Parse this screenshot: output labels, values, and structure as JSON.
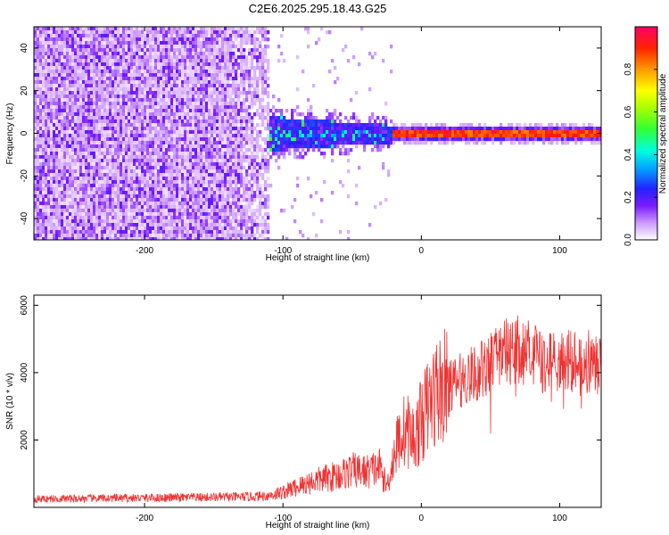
{
  "title": "C2E6.2025.295.18.43.G25",
  "chart_data": [
    {
      "type": "heatmap",
      "title": "C2E6.2025.295.18.43.G25",
      "xlabel": "Height of straight line (km)",
      "ylabel": "Frequency (Hz)",
      "xlim": [
        -280,
        130
      ],
      "ylim": [
        -50,
        50
      ],
      "x_ticks": [
        -200,
        -100,
        0,
        100
      ],
      "x_tick_labels": [
        "-200",
        "-100",
        "0",
        "100"
      ],
      "y_ticks": [
        -40,
        -20,
        0,
        20,
        40
      ],
      "y_tick_labels": [
        "-40",
        "-20",
        "0",
        "20",
        "40"
      ],
      "colorbar": {
        "label": "Normalized spectral amplitude",
        "range": [
          0,
          1
        ],
        "ticks": [
          0.0,
          0.2,
          0.4,
          0.6,
          0.8
        ],
        "tick_labels": [
          "0.0",
          "0.2",
          "0.4",
          "0.6",
          "0.8"
        ]
      },
      "regions": [
        {
          "x_range": [
            -280,
            -110
          ],
          "freq_range": [
            -50,
            50
          ],
          "amplitude": [
            0.0,
            0.15
          ],
          "pattern": "broadband noise"
        },
        {
          "x_range": [
            -110,
            -20
          ],
          "freq_range": [
            -8,
            8
          ],
          "amplitude": [
            0.1,
            0.35
          ],
          "pattern": "concentrated near 0 Hz"
        },
        {
          "x_range": [
            -20,
            130
          ],
          "freq_range": [
            -2,
            2
          ],
          "amplitude": [
            0.6,
            0.95
          ],
          "pattern": "narrow line at 0 Hz"
        }
      ],
      "grid": false
    },
    {
      "type": "line",
      "xlabel": "Height of straight line (km)",
      "ylabel": "SNR (10 * v/v)",
      "xlim": [
        -280,
        130
      ],
      "ylim": [
        0,
        6300
      ],
      "x_ticks": [
        -200,
        -100,
        0,
        100
      ],
      "x_tick_labels": [
        "-200",
        "-100",
        "0",
        "100"
      ],
      "y_ticks": [
        2000,
        4000,
        6000
      ],
      "y_tick_labels": [
        "2000",
        "4000",
        "6000"
      ],
      "series": [
        {
          "color": "#ee3333",
          "x": [
            -280,
            -250,
            -200,
            -150,
            -120,
            -110,
            -100,
            -90,
            -80,
            -70,
            -60,
            -50,
            -40,
            -30,
            -25,
            -20,
            -15,
            -10,
            -5,
            0,
            5,
            10,
            20,
            30,
            40,
            50,
            60,
            70,
            80,
            90,
            100,
            110,
            120,
            130
          ],
          "y": [
            250,
            260,
            280,
            300,
            320,
            350,
            450,
            600,
            750,
            850,
            950,
            1100,
            1050,
            1200,
            600,
            1500,
            2200,
            2300,
            2000,
            2600,
            3000,
            3400,
            3600,
            3800,
            4000,
            4300,
            4600,
            4700,
            4500,
            4300,
            4400,
            4300,
            4100,
            4200
          ]
        }
      ],
      "grid": false
    }
  ]
}
